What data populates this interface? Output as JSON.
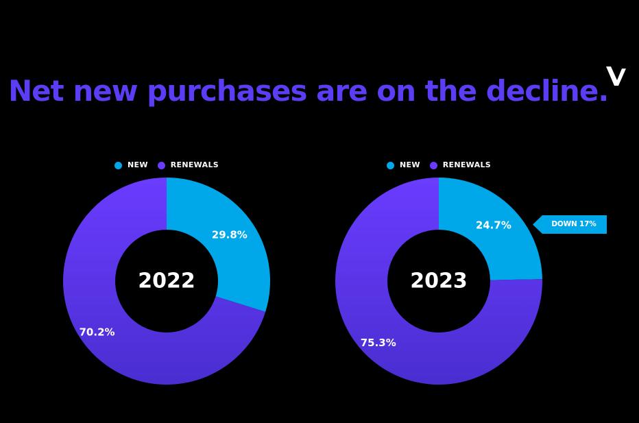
{
  "title": "Net new purchases are on the decline.",
  "colors": {
    "background": "#000000",
    "title": "#5b3df5",
    "new": "#00a8ea",
    "renewals_top": "#6a3cff",
    "renewals_bottom": "#4a2ed0",
    "callout": "#00a8ea"
  },
  "logo": {
    "icon": "v-logo-icon"
  },
  "callout": {
    "text": "DOWN 17%"
  },
  "chart_data": [
    {
      "type": "pie",
      "center_label": "2022",
      "legend": [
        "NEW",
        "RENEWALS"
      ],
      "legend_placement": "top-center",
      "series": [
        {
          "name": "NEW",
          "value": 29.8,
          "label": "29.8%"
        },
        {
          "name": "RENEWALS",
          "value": 70.2,
          "label": "70.2%"
        }
      ]
    },
    {
      "type": "pie",
      "center_label": "2023",
      "legend": [
        "NEW",
        "RENEWALS"
      ],
      "legend_placement": "top-center",
      "series": [
        {
          "name": "NEW",
          "value": 24.7,
          "label": "24.7%"
        },
        {
          "name": "RENEWALS",
          "value": 75.3,
          "label": "75.3%"
        }
      ]
    }
  ]
}
